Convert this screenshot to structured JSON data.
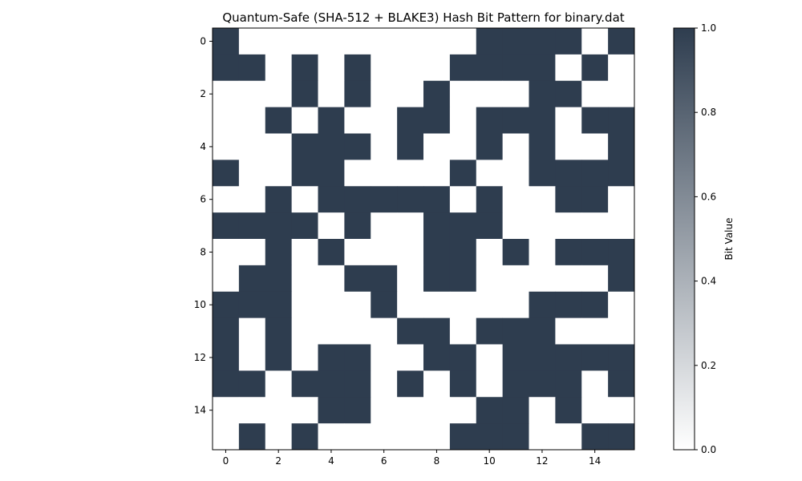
{
  "chart_data": {
    "type": "heatmap",
    "title": "Quantum-Safe (SHA-512 + BLAKE3) Hash Bit Pattern for binary.dat",
    "xlabel": "",
    "ylabel": "",
    "x_ticks": [
      "0",
      "2",
      "4",
      "6",
      "8",
      "10",
      "12",
      "14"
    ],
    "y_ticks": [
      "0",
      "2",
      "4",
      "6",
      "8",
      "10",
      "12",
      "14"
    ],
    "colorbar": {
      "label": "Bit Value",
      "ticks": [
        "0.0",
        "0.2",
        "0.4",
        "0.6",
        "0.8",
        "1.0"
      ],
      "range": [
        0,
        1
      ],
      "low_color": "#ffffff",
      "high_color": "#2e3d4f"
    },
    "grid": false,
    "rows": [
      [
        1,
        0,
        0,
        0,
        0,
        0,
        0,
        0,
        0,
        0,
        1,
        1,
        1,
        1,
        0,
        1
      ],
      [
        1,
        1,
        0,
        1,
        0,
        1,
        0,
        0,
        0,
        1,
        1,
        1,
        1,
        0,
        1,
        0
      ],
      [
        0,
        0,
        0,
        1,
        0,
        1,
        0,
        0,
        1,
        0,
        0,
        0,
        1,
        1,
        0,
        0
      ],
      [
        0,
        0,
        1,
        0,
        1,
        0,
        0,
        1,
        1,
        0,
        1,
        1,
        1,
        0,
        1,
        1
      ],
      [
        0,
        0,
        0,
        1,
        1,
        1,
        0,
        1,
        0,
        0,
        1,
        0,
        1,
        0,
        0,
        1
      ],
      [
        1,
        0,
        0,
        1,
        1,
        0,
        0,
        0,
        0,
        1,
        0,
        0,
        1,
        1,
        1,
        1
      ],
      [
        0,
        0,
        1,
        0,
        1,
        1,
        1,
        1,
        1,
        0,
        1,
        0,
        0,
        1,
        1,
        0
      ],
      [
        1,
        1,
        1,
        1,
        0,
        1,
        0,
        0,
        1,
        1,
        1,
        0,
        0,
        0,
        0,
        0
      ],
      [
        0,
        0,
        1,
        0,
        1,
        0,
        0,
        0,
        1,
        1,
        0,
        1,
        0,
        1,
        1,
        1
      ],
      [
        0,
        1,
        1,
        0,
        0,
        1,
        1,
        0,
        1,
        1,
        0,
        0,
        0,
        0,
        0,
        1
      ],
      [
        1,
        1,
        1,
        0,
        0,
        0,
        1,
        0,
        0,
        0,
        0,
        0,
        1,
        1,
        1,
        0
      ],
      [
        1,
        0,
        1,
        0,
        0,
        0,
        0,
        1,
        1,
        0,
        1,
        1,
        1,
        0,
        0,
        0
      ],
      [
        1,
        0,
        1,
        0,
        1,
        1,
        0,
        0,
        1,
        1,
        0,
        1,
        1,
        1,
        1,
        1
      ],
      [
        1,
        1,
        0,
        1,
        1,
        1,
        0,
        1,
        0,
        1,
        0,
        1,
        1,
        1,
        0,
        1
      ],
      [
        0,
        0,
        0,
        0,
        1,
        1,
        0,
        0,
        0,
        0,
        1,
        1,
        0,
        1,
        0,
        0
      ],
      [
        0,
        1,
        0,
        1,
        0,
        0,
        0,
        0,
        0,
        1,
        1,
        1,
        0,
        0,
        1,
        1
      ]
    ]
  }
}
